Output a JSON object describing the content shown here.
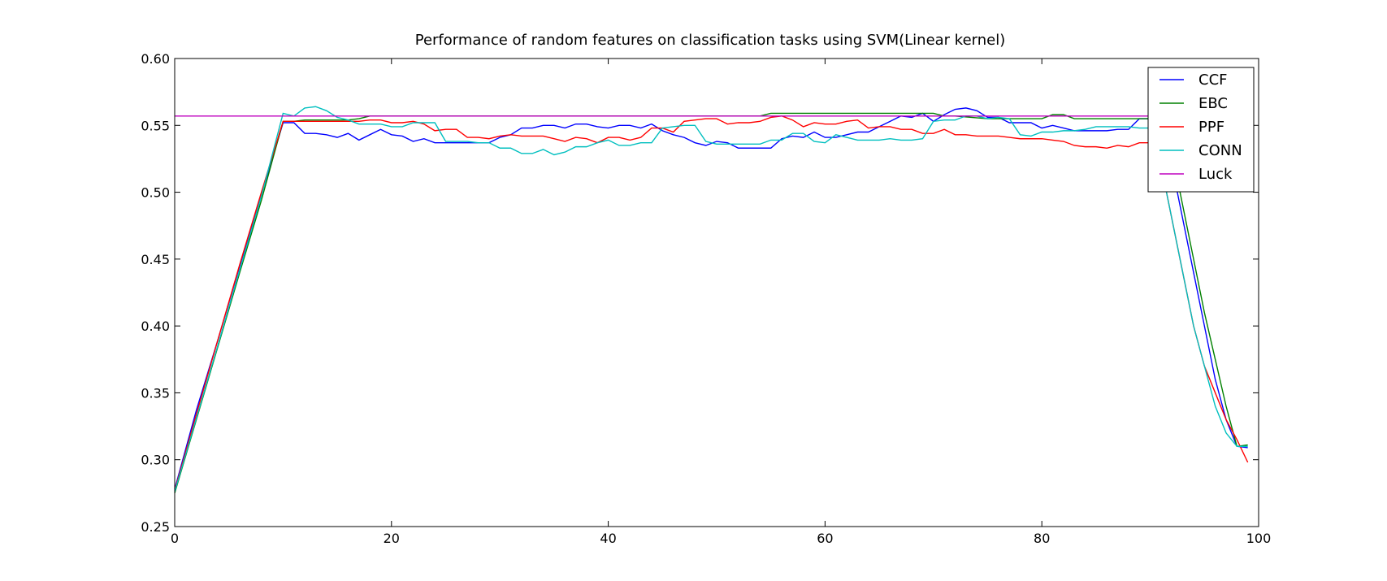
{
  "chart_data": {
    "type": "line",
    "title": "Performance of random features on classification tasks using SVM(Linear kernel)",
    "xlabel": "",
    "ylabel": "",
    "xlim": [
      0,
      100
    ],
    "ylim": [
      0.25,
      0.6
    ],
    "xticks": [
      0,
      20,
      40,
      60,
      80,
      100
    ],
    "yticks": [
      0.25,
      0.3,
      0.35,
      0.4,
      0.45,
      0.5,
      0.55,
      0.6
    ],
    "xtick_labels": [
      "0",
      "20",
      "40",
      "60",
      "80",
      "100"
    ],
    "ytick_labels": [
      "0.25",
      "0.30",
      "0.35",
      "0.40",
      "0.45",
      "0.50",
      "0.55",
      "0.60"
    ],
    "grid": false,
    "legend_position": "top-right",
    "series": [
      {
        "name": "CCF",
        "color": "#0000ff",
        "x": [
          0,
          2,
          4,
          6,
          8,
          10,
          11,
          12,
          13,
          14,
          15,
          16,
          17,
          18,
          19,
          20,
          21,
          22,
          23,
          24,
          25,
          26,
          27,
          28,
          29,
          30,
          31,
          32,
          33,
          34,
          35,
          36,
          37,
          38,
          39,
          40,
          41,
          42,
          43,
          44,
          45,
          46,
          47,
          48,
          49,
          50,
          51,
          52,
          53,
          54,
          55,
          56,
          57,
          58,
          59,
          60,
          61,
          62,
          63,
          64,
          65,
          66,
          67,
          68,
          69,
          70,
          71,
          72,
          73,
          74,
          75,
          76,
          77,
          78,
          79,
          80,
          81,
          82,
          83,
          84,
          85,
          86,
          87,
          88,
          89,
          90,
          91,
          92,
          93,
          94,
          95,
          96,
          97,
          98,
          99
        ],
        "y": [
          0.278,
          0.337,
          0.39,
          0.445,
          0.498,
          0.552,
          0.552,
          0.544,
          0.544,
          0.543,
          0.541,
          0.544,
          0.539,
          0.543,
          0.547,
          0.543,
          0.542,
          0.538,
          0.54,
          0.537,
          0.537,
          0.537,
          0.537,
          0.537,
          0.537,
          0.541,
          0.543,
          0.548,
          0.548,
          0.55,
          0.55,
          0.548,
          0.551,
          0.551,
          0.549,
          0.548,
          0.55,
          0.55,
          0.548,
          0.551,
          0.546,
          0.543,
          0.541,
          0.537,
          0.535,
          0.538,
          0.537,
          0.533,
          0.533,
          0.533,
          0.533,
          0.54,
          0.542,
          0.541,
          0.545,
          0.541,
          0.541,
          0.543,
          0.545,
          0.545,
          0.549,
          0.553,
          0.557,
          0.556,
          0.559,
          0.553,
          0.558,
          0.562,
          0.563,
          0.561,
          0.556,
          0.556,
          0.552,
          0.552,
          0.552,
          0.548,
          0.55,
          0.548,
          0.546,
          0.546,
          0.546,
          0.546,
          0.547,
          0.547,
          0.555,
          0.555,
          0.557,
          0.52,
          0.48,
          0.44,
          0.4,
          0.36,
          0.33,
          0.31,
          0.309
        ]
      },
      {
        "name": "EBC",
        "color": "#008000",
        "x": [
          0,
          2,
          4,
          6,
          8,
          10,
          11,
          12,
          13,
          14,
          15,
          16,
          17,
          18,
          19,
          20,
          25,
          30,
          35,
          40,
          45,
          50,
          54,
          55,
          56,
          60,
          65,
          70,
          71,
          72,
          75,
          80,
          81,
          82,
          83,
          85,
          90,
          91,
          92,
          93,
          94,
          95,
          96,
          97,
          98,
          99
        ],
        "y": [
          0.275,
          0.33,
          0.385,
          0.44,
          0.494,
          0.553,
          0.553,
          0.554,
          0.554,
          0.554,
          0.554,
          0.554,
          0.555,
          0.557,
          0.557,
          0.557,
          0.557,
          0.557,
          0.557,
          0.557,
          0.557,
          0.557,
          0.557,
          0.559,
          0.559,
          0.559,
          0.559,
          0.559,
          0.557,
          0.557,
          0.555,
          0.555,
          0.558,
          0.558,
          0.555,
          0.555,
          0.555,
          0.555,
          0.53,
          0.49,
          0.45,
          0.41,
          0.375,
          0.34,
          0.31,
          0.311
        ]
      },
      {
        "name": "PPF",
        "color": "#ff0000",
        "x": [
          0,
          2,
          4,
          6,
          8,
          10,
          11,
          12,
          13,
          14,
          15,
          16,
          17,
          18,
          19,
          20,
          21,
          22,
          23,
          24,
          25,
          26,
          27,
          28,
          29,
          30,
          31,
          32,
          33,
          34,
          35,
          36,
          37,
          38,
          39,
          40,
          41,
          42,
          43,
          44,
          45,
          46,
          47,
          48,
          49,
          50,
          51,
          52,
          53,
          54,
          55,
          56,
          57,
          58,
          59,
          60,
          61,
          62,
          63,
          64,
          65,
          66,
          67,
          68,
          69,
          70,
          71,
          72,
          73,
          74,
          75,
          76,
          77,
          78,
          79,
          80,
          81,
          82,
          83,
          84,
          85,
          86,
          87,
          88,
          89,
          90,
          91,
          92,
          93,
          94,
          95,
          96,
          97,
          98,
          99
        ],
        "y": [
          0.277,
          0.334,
          0.39,
          0.446,
          0.5,
          0.553,
          0.553,
          0.553,
          0.553,
          0.553,
          0.553,
          0.553,
          0.553,
          0.554,
          0.554,
          0.552,
          0.552,
          0.553,
          0.551,
          0.546,
          0.547,
          0.547,
          0.541,
          0.541,
          0.54,
          0.542,
          0.543,
          0.542,
          0.542,
          0.542,
          0.54,
          0.538,
          0.541,
          0.54,
          0.537,
          0.541,
          0.541,
          0.539,
          0.541,
          0.548,
          0.548,
          0.545,
          0.553,
          0.554,
          0.555,
          0.555,
          0.551,
          0.552,
          0.552,
          0.553,
          0.556,
          0.557,
          0.554,
          0.549,
          0.552,
          0.551,
          0.551,
          0.553,
          0.554,
          0.548,
          0.549,
          0.549,
          0.547,
          0.547,
          0.544,
          0.544,
          0.547,
          0.543,
          0.543,
          0.542,
          0.542,
          0.542,
          0.541,
          0.54,
          0.54,
          0.54,
          0.539,
          0.538,
          0.535,
          0.534,
          0.534,
          0.533,
          0.535,
          0.534,
          0.537,
          0.537,
          0.52,
          0.48,
          0.44,
          0.4,
          0.37,
          0.35,
          0.33,
          0.315,
          0.298
        ]
      },
      {
        "name": "CONN",
        "color": "#00bfbf",
        "x": [
          0,
          2,
          4,
          6,
          8,
          10,
          11,
          12,
          13,
          14,
          15,
          16,
          17,
          18,
          19,
          20,
          21,
          22,
          23,
          24,
          25,
          26,
          27,
          28,
          29,
          30,
          31,
          32,
          33,
          34,
          35,
          36,
          37,
          38,
          39,
          40,
          41,
          42,
          43,
          44,
          45,
          46,
          47,
          48,
          49,
          50,
          51,
          52,
          53,
          54,
          55,
          56,
          57,
          58,
          59,
          60,
          61,
          62,
          63,
          64,
          65,
          66,
          67,
          68,
          69,
          70,
          71,
          72,
          73,
          74,
          75,
          76,
          77,
          78,
          79,
          80,
          81,
          82,
          83,
          84,
          85,
          86,
          87,
          88,
          89,
          90,
          91,
          92,
          93,
          94,
          95,
          96,
          97,
          98,
          99
        ],
        "y": [
          0.276,
          0.331,
          0.386,
          0.442,
          0.497,
          0.559,
          0.557,
          0.563,
          0.564,
          0.561,
          0.556,
          0.554,
          0.551,
          0.551,
          0.551,
          0.549,
          0.549,
          0.552,
          0.552,
          0.552,
          0.538,
          0.538,
          0.538,
          0.537,
          0.537,
          0.533,
          0.533,
          0.529,
          0.529,
          0.532,
          0.528,
          0.53,
          0.534,
          0.534,
          0.537,
          0.539,
          0.535,
          0.535,
          0.537,
          0.537,
          0.548,
          0.549,
          0.55,
          0.55,
          0.538,
          0.536,
          0.536,
          0.536,
          0.536,
          0.536,
          0.539,
          0.539,
          0.544,
          0.544,
          0.538,
          0.537,
          0.543,
          0.541,
          0.539,
          0.539,
          0.539,
          0.54,
          0.539,
          0.539,
          0.54,
          0.553,
          0.554,
          0.554,
          0.557,
          0.557,
          0.555,
          0.556,
          0.555,
          0.543,
          0.542,
          0.545,
          0.545,
          0.546,
          0.546,
          0.547,
          0.549,
          0.549,
          0.549,
          0.549,
          0.548,
          0.548,
          0.52,
          0.48,
          0.44,
          0.4,
          0.37,
          0.34,
          0.32,
          0.31,
          0.31
        ]
      },
      {
        "name": "Luck",
        "color": "#bf00bf",
        "x": [
          0,
          92
        ],
        "y": [
          0.557,
          0.557
        ]
      }
    ]
  }
}
